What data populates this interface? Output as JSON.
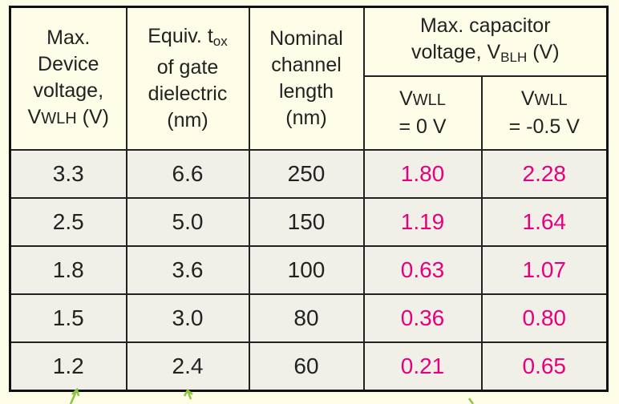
{
  "header": {
    "col0": {
      "line1": "Max.",
      "line2": "Device",
      "line3": "voltage,",
      "symbol": "V",
      "sub": "WLH",
      "unit": "(V)"
    },
    "col1": {
      "line1": "Equiv. t",
      "sub": "ox",
      "line2": "of gate",
      "line3": "dielectric",
      "unit": "(nm)"
    },
    "col2": {
      "line1": "Nominal",
      "line2": "channel",
      "line3": "length",
      "unit": "(nm)"
    },
    "col3": {
      "line1": "Max. capacitor",
      "line2": "voltage, V",
      "sub": "BLH",
      "unit": "(V)"
    },
    "col3a": {
      "symbol": "V",
      "sub": "WLL",
      "condition": "= 0 V"
    },
    "col3b": {
      "symbol": "V",
      "sub": "WLL",
      "condition": "= -0.5 V"
    }
  },
  "table": {
    "rows": [
      [
        "3.3",
        "6.6",
        "250",
        "1.80",
        "2.28"
      ],
      [
        "2.5",
        "5.0",
        "150",
        "1.19",
        "1.64"
      ],
      [
        "1.8",
        "3.6",
        "100",
        "0.63",
        "1.07"
      ],
      [
        "1.5",
        "3.0",
        "80",
        "0.36",
        "0.80"
      ],
      [
        "1.2",
        "2.4",
        "60",
        "0.21",
        "0.65"
      ]
    ]
  }
}
